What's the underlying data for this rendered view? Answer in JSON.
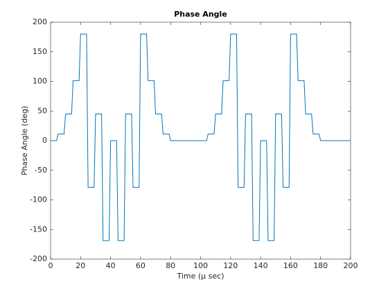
{
  "chart_data": {
    "type": "line",
    "title": "Phase Angle",
    "x_label": "Time (μ sec)",
    "y_label": "Phase Angle (deg)",
    "x": [
      0,
      4,
      5,
      9,
      10,
      14,
      15,
      19,
      20,
      24,
      25,
      29,
      30,
      34,
      35,
      39,
      40,
      44,
      45,
      49,
      50,
      54,
      55,
      59,
      60,
      64,
      65,
      69,
      70,
      74,
      75,
      79,
      80,
      104,
      105,
      109,
      110,
      114,
      115,
      119,
      120,
      124,
      125,
      129,
      130,
      134,
      135,
      139,
      140,
      144,
      145,
      149,
      150,
      154,
      155,
      159,
      160,
      164,
      165,
      169,
      170,
      174,
      175,
      179,
      180,
      200
    ],
    "series": [
      {
        "color": "#0072bd",
        "values": [
          0,
          0,
          11.25,
          11.25,
          45,
          45,
          101.25,
          101.25,
          180,
          180,
          -78.75,
          -78.75,
          45,
          45,
          -168.75,
          -168.75,
          0,
          0,
          -168.75,
          -168.75,
          45,
          45,
          -78.75,
          -78.75,
          180,
          180,
          101.25,
          101.25,
          45,
          45,
          11.25,
          11.25,
          0,
          0,
          11.25,
          11.25,
          45,
          45,
          101.25,
          101.25,
          180,
          180,
          -78.75,
          -78.75,
          45,
          45,
          -168.75,
          -168.75,
          0,
          0,
          -168.75,
          -168.75,
          45,
          45,
          -78.75,
          -78.75,
          180,
          180,
          101.25,
          101.25,
          45,
          45,
          11.25,
          11.25,
          0,
          0
        ]
      }
    ],
    "xlim": [
      0,
      200
    ],
    "xticks": [
      0,
      20,
      40,
      60,
      80,
      100,
      120,
      140,
      160,
      180,
      200
    ],
    "ylim": [
      -200,
      200
    ],
    "yticks": [
      -200,
      -150,
      -100,
      -50,
      0,
      50,
      100,
      150,
      200
    ],
    "grid": false
  }
}
